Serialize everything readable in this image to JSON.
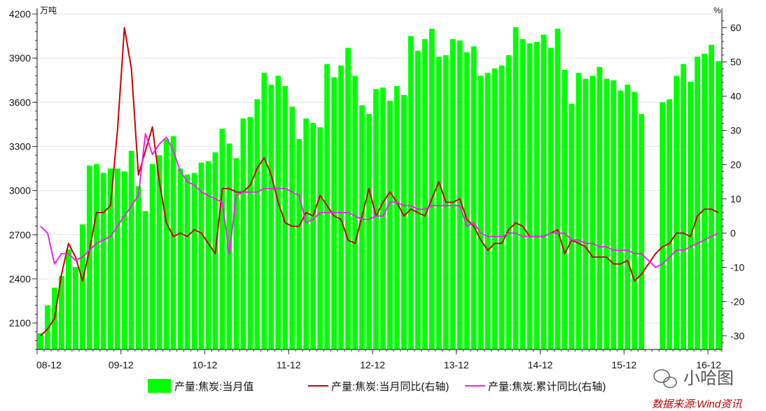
{
  "colors": {
    "bar": "#00ff00",
    "line_monthly": "#cc0000",
    "line_cumulative": "#ee22ee",
    "axis": "#333333",
    "grid": "#e6e6e6"
  },
  "chart_data": {
    "type": "bar",
    "left_unit": "万吨",
    "right_unit": "%",
    "x_tick_labels": [
      "08-12",
      "09-12",
      "10-12",
      "11-12",
      "12-12",
      "13-12",
      "14-12",
      "15-12",
      "16-12"
    ],
    "y_left": {
      "min": 1920,
      "max": 4200,
      "ticks": [
        2100,
        2400,
        2700,
        3000,
        3300,
        3600,
        3900,
        4200
      ]
    },
    "y_right": {
      "min": -34,
      "max": 64,
      "ticks": [
        -30,
        -20,
        -10,
        0,
        10,
        20,
        30,
        40,
        50,
        60
      ]
    },
    "grid": true,
    "legend_position": "bottom",
    "series": [
      {
        "name": "产量:焦炭:当月值",
        "kind": "bar",
        "axis": "left",
        "values": [
          2030,
          2220,
          2340,
          2420,
          2600,
          2480,
          2770,
          3170,
          3180,
          3120,
          3150,
          3150,
          3130,
          3270,
          3030,
          2860,
          3180,
          3240,
          3350,
          3370,
          3150,
          3110,
          3120,
          3190,
          3200,
          3260,
          3420,
          3320,
          3220,
          3490,
          3500,
          3620,
          3800,
          3720,
          3780,
          3710,
          3570,
          3350,
          3490,
          3460,
          3430,
          3860,
          3770,
          3850,
          3970,
          3780,
          3580,
          3520,
          3690,
          3700,
          3610,
          3710,
          3650,
          4050,
          3950,
          4030,
          4100,
          3910,
          3920,
          4030,
          4020,
          3940,
          3980,
          3780,
          3800,
          3830,
          3850,
          3920,
          4110,
          4030,
          4000,
          4010,
          4060,
          3970,
          4100,
          3820,
          3590,
          3800,
          3760,
          3780,
          3840,
          3760,
          3750,
          3680,
          3720,
          3670,
          3520,
          null,
          null,
          3600,
          3620,
          3780,
          3860,
          3740,
          3910,
          3930,
          3990,
          3880
        ]
      },
      {
        "name": "产量:焦炭:当月同比(右轴)",
        "kind": "line",
        "axis": "right",
        "values": [
          -30,
          -28,
          -25,
          -12,
          -3,
          -7,
          -14,
          -5,
          6,
          6,
          8,
          30,
          60,
          48,
          17,
          24,
          31,
          15,
          3,
          -1,
          0,
          -1,
          1,
          0,
          -3,
          -6,
          13,
          13,
          12,
          12,
          14,
          19,
          22,
          17,
          9,
          3,
          2,
          2,
          6,
          5,
          11,
          8,
          5,
          4,
          -2,
          -3,
          5,
          13,
          5,
          9,
          12,
          9,
          5,
          7,
          6,
          5,
          10,
          15,
          9,
          9,
          10,
          4,
          2,
          -2,
          -5,
          -3,
          -3,
          1,
          3,
          2,
          -1,
          -1,
          -1,
          0,
          1,
          -6,
          -2,
          -3,
          -4,
          -7,
          -7,
          -7,
          -9,
          -9,
          -8,
          -14,
          -12,
          -9,
          -6,
          -4,
          -3,
          0,
          0,
          -1,
          5,
          7,
          7,
          6
        ]
      },
      {
        "name": "产量:焦炭:累计同比(右轴)",
        "kind": "line",
        "axis": "right",
        "values": [
          2,
          0,
          -9,
          -6,
          -6,
          -8,
          -7,
          -5,
          -3,
          -2,
          -1,
          2,
          5,
          8,
          11,
          29,
          23,
          26,
          28,
          24,
          18,
          15,
          14,
          12,
          11,
          10,
          9,
          -6,
          11,
          12,
          12,
          12,
          13,
          13,
          13,
          13,
          12,
          11,
          3,
          4,
          6,
          6,
          6,
          6,
          6,
          5,
          4,
          4,
          5,
          5,
          9,
          9,
          8,
          8,
          7,
          7,
          8,
          8,
          8,
          8,
          8,
          2,
          3,
          0,
          -1,
          -1,
          -1,
          0,
          0,
          -1,
          -1,
          -1,
          -1,
          0,
          0,
          0,
          -2,
          -2,
          -3,
          -3,
          -4,
          -4,
          -5,
          -5,
          -5,
          -6,
          -6,
          -8,
          -10,
          -9,
          -7,
          -5,
          -5,
          -4,
          -3,
          -2,
          -1,
          0
        ]
      }
    ]
  },
  "watermark": {
    "text": "小哈图"
  },
  "source": {
    "text": "数据来源:Wind资讯"
  }
}
